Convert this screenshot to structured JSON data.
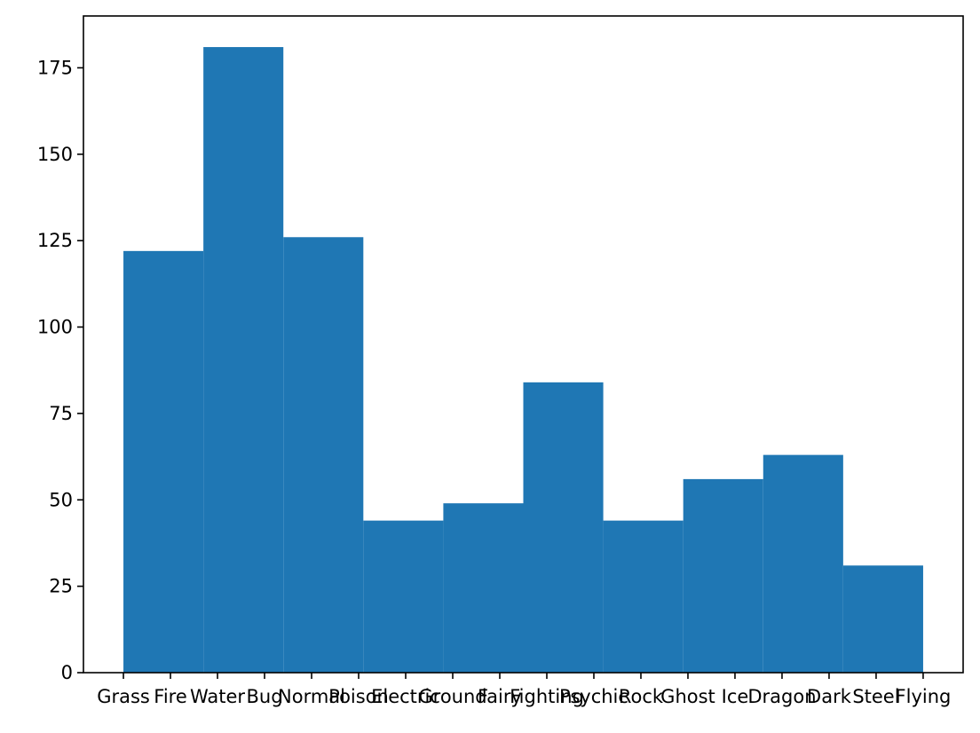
{
  "chart_data": {
    "type": "bar",
    "title": "",
    "xlabel": "",
    "ylabel": "",
    "categories": [
      "Grass",
      "Fire",
      "Water",
      "Bug",
      "Normal",
      "Poison",
      "Electric",
      "Ground",
      "Fairy",
      "Fighting",
      "Psychic",
      "Rock",
      "Ghost",
      "Ice",
      "Dragon",
      "Dark",
      "Steel",
      "Flying"
    ],
    "bins": [
      {
        "start": 0.0,
        "end": 1.7,
        "value": 122
      },
      {
        "start": 1.7,
        "end": 3.4,
        "value": 181
      },
      {
        "start": 3.4,
        "end": 5.1,
        "value": 126
      },
      {
        "start": 5.1,
        "end": 6.8,
        "value": 44
      },
      {
        "start": 6.8,
        "end": 8.5,
        "value": 49
      },
      {
        "start": 8.5,
        "end": 10.2,
        "value": 84
      },
      {
        "start": 10.2,
        "end": 11.9,
        "value": 44
      },
      {
        "start": 11.9,
        "end": 13.6,
        "value": 56
      },
      {
        "start": 13.6,
        "end": 15.3,
        "value": 63
      },
      {
        "start": 15.3,
        "end": 17.0,
        "value": 31
      }
    ],
    "xlim": [
      -0.85,
      17.85
    ],
    "ylim": [
      0,
      190
    ],
    "yticks": [
      0,
      25,
      50,
      75,
      100,
      125,
      150,
      175
    ],
    "grid": false,
    "colors": {
      "bar": "#1f77b4"
    }
  }
}
